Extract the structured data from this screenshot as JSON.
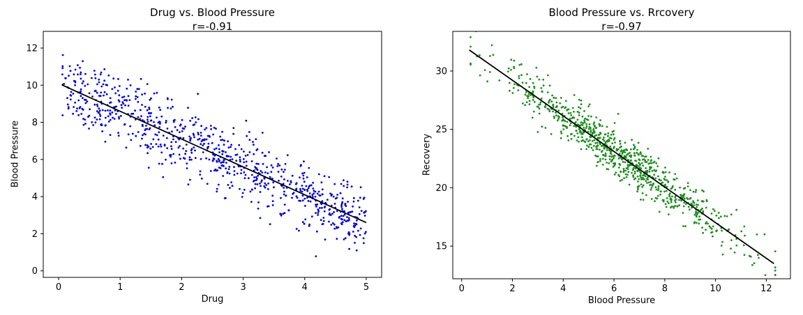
{
  "figure": {
    "background": "#ffffff",
    "text_color": "#000000"
  },
  "chart_data": [
    {
      "type": "scatter",
      "title": "Drug vs. Blood Pressure",
      "subtitle": "r=-0.91",
      "correlation": -0.91,
      "xlabel": "Drug",
      "ylabel": "Blood Pressure",
      "xlim": [
        -0.25,
        5.25
      ],
      "ylim": [
        -0.35,
        12.9
      ],
      "xticks": [
        0,
        1,
        2,
        3,
        4,
        5
      ],
      "yticks": [
        0,
        2,
        4,
        6,
        8,
        10,
        12
      ],
      "grid": false,
      "legend": false,
      "point_color": "#0000dd",
      "marker_radius": 1.4,
      "n_points": 850,
      "generator": {
        "x_dist": "uniform",
        "x_min": 0.05,
        "x_max": 5.0,
        "slope": -1.5,
        "intercept": 10.1,
        "noise_sd": 0.95,
        "seed": 42
      },
      "regression_line": {
        "x1": 0.05,
        "y1": 10.02,
        "x2": 5.0,
        "y2": 2.6,
        "color": "#000000"
      }
    },
    {
      "type": "scatter",
      "title": "Blood Pressure vs. Rrcovery",
      "subtitle": "r=-0.97",
      "correlation": -0.97,
      "xlabel": "Blood Pressure",
      "ylabel": "Recovery",
      "xlim": [
        -0.35,
        12.95
      ],
      "ylim": [
        12.2,
        33.4
      ],
      "xticks": [
        0,
        2,
        4,
        6,
        8,
        10,
        12
      ],
      "yticks": [
        15,
        20,
        25,
        30
      ],
      "grid": false,
      "legend": false,
      "point_color": "#1e8c1e",
      "marker_radius": 1.4,
      "n_points": 850,
      "generator": {
        "x_dist": "normal",
        "x_mean": 6.35,
        "x_sd": 2.35,
        "x_min": 0.35,
        "x_max": 12.35,
        "slope": -1.525,
        "intercept": 32.25,
        "noise_sd": 0.9,
        "seed": 7
      },
      "regression_line": {
        "x1": 0.3,
        "y1": 31.8,
        "x2": 12.3,
        "y2": 13.5,
        "color": "#000000"
      }
    }
  ]
}
